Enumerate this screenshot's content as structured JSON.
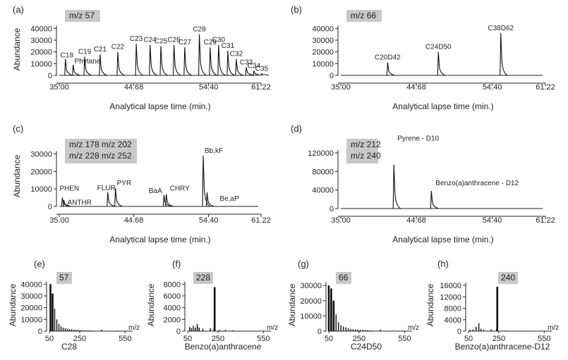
{
  "chart_data": [
    {
      "panel": "(a)",
      "type": "line",
      "ion_label": [
        "m/z 57"
      ],
      "xlabel": "Analytical lapse time (min.)",
      "ylabel": "Abundance",
      "xlim": [
        35.0,
        61.22
      ],
      "ylim": [
        0,
        45000
      ],
      "xticks": [
        "35.00",
        "44.68",
        "54.40",
        "61.22"
      ],
      "yticks": [
        0,
        10000,
        20000,
        30000,
        40000
      ],
      "peaks": [
        {
          "label": "C18",
          "x": 35.8,
          "y": 14000
        },
        {
          "label": "Phytane",
          "x": 36.8,
          "y": 9000
        },
        {
          "label": "C19",
          "x": 38.3,
          "y": 16000
        },
        {
          "label": "C21",
          "x": 40.3,
          "y": 18000
        },
        {
          "label": "C22",
          "x": 42.6,
          "y": 20000
        },
        {
          "label": "C23",
          "x": 45.0,
          "y": 27000
        },
        {
          "label": "C24",
          "x": 46.8,
          "y": 26000
        },
        {
          "label": "C25",
          "x": 48.2,
          "y": 25000
        },
        {
          "label": "C26",
          "x": 49.9,
          "y": 26000
        },
        {
          "label": "C27",
          "x": 51.3,
          "y": 24000
        },
        {
          "label": "C28",
          "x": 53.2,
          "y": 35000
        },
        {
          "label": "C29",
          "x": 54.6,
          "y": 24000
        },
        {
          "label": "C30",
          "x": 55.7,
          "y": 26000
        },
        {
          "label": "C31",
          "x": 56.9,
          "y": 21000
        },
        {
          "label": "C32",
          "x": 58.0,
          "y": 14000
        },
        {
          "label": "C33",
          "x": 59.3,
          "y": 7000
        },
        {
          "label": "C34",
          "x": 60.3,
          "y": 4000
        },
        {
          "label": "C35",
          "x": 61.3,
          "y": 1500
        }
      ]
    },
    {
      "panel": "(b)",
      "type": "line",
      "ion_label": [
        "m/z 66"
      ],
      "xlabel": "Analytical lapse time (min.)",
      "ylabel": "",
      "xlim": [
        35.0,
        61.22
      ],
      "ylim": [
        0,
        45000
      ],
      "xticks": [
        "35.00",
        "44.68",
        "54.40",
        "61.22"
      ],
      "yticks": [
        0,
        10000,
        20000,
        30000,
        40000
      ],
      "peaks": [
        {
          "label": "C20D42",
          "x": 41.0,
          "y": 11000
        },
        {
          "label": "C24D50",
          "x": 47.5,
          "y": 20000
        },
        {
          "label": "C38D62",
          "x": 55.5,
          "y": 36000
        }
      ]
    },
    {
      "panel": "(c)",
      "type": "line",
      "ion_label": [
        "m/z 178 m/z 202",
        "m/z 228 m/z 252"
      ],
      "xlabel": "Analytical lapse time (min.)",
      "ylabel": "Abundance",
      "xlim": [
        35.0,
        61.22
      ],
      "ylim": [
        0,
        35000
      ],
      "xticks": [
        "35.00",
        "44.68",
        "54.40",
        "61.22"
      ],
      "yticks": [
        0,
        10000,
        20000,
        30000
      ],
      "peaks": [
        {
          "label": "PHEN",
          "x": 35.4,
          "y": 5000
        },
        {
          "label": "ANTHR",
          "x": 35.6,
          "y": 3500
        },
        {
          "label": "FLUR",
          "x": 41.3,
          "y": 8000
        },
        {
          "label": "PYR",
          "x": 42.3,
          "y": 10500
        },
        {
          "label": "BaA",
          "x": 48.6,
          "y": 6500
        },
        {
          "label": "CHRY",
          "x": 48.9,
          "y": 7000
        },
        {
          "label": "Bb,kF",
          "x": 53.7,
          "y": 29000
        },
        {
          "label": "Be,aP",
          "x": 54.2,
          "y": 8000
        }
      ]
    },
    {
      "panel": "(d)",
      "type": "line",
      "ion_label": [
        "m/z 212",
        "m/z 240"
      ],
      "xlabel": "Analytical lapse time (min.)",
      "ylabel": "",
      "xlim": [
        35.0,
        61.22
      ],
      "ylim": [
        0,
        120000
      ],
      "xticks": [
        "35.00",
        "44.68",
        "54.40",
        "61.22"
      ],
      "yticks": [
        0,
        40000,
        80000,
        120000
      ],
      "peaks": [
        {
          "label": "Pyrene - D10",
          "x": 41.8,
          "y": 95000
        },
        {
          "label": "Benzo(a)anthracene - D12",
          "x": 46.6,
          "y": 38000
        }
      ]
    },
    {
      "panel": "(e)",
      "type": "bar",
      "mz_label": "57",
      "compound": "C28",
      "xlabel": "m/z",
      "ylabel": "Abundance",
      "xlim": [
        50,
        600
      ],
      "ylim": [
        0,
        42000
      ],
      "xticks": [
        50,
        250,
        550
      ],
      "yticks": [
        0,
        10000,
        20000,
        30000,
        40000
      ],
      "mz": [
        57,
        71,
        85,
        99,
        113,
        127,
        141,
        155,
        169,
        183,
        197,
        211,
        225,
        239,
        253,
        267,
        281,
        295,
        309,
        323,
        337,
        351,
        365,
        379,
        394
      ],
      "intensity": [
        40000,
        32000,
        19000,
        10000,
        6000,
        4000,
        3000,
        2500,
        2000,
        1800,
        1500,
        1300,
        1100,
        1000,
        900,
        800,
        700,
        600,
        500,
        450,
        400,
        350,
        300,
        250,
        1200
      ]
    },
    {
      "panel": "(f)",
      "type": "bar",
      "mz_label": "228",
      "compound": "Benzo(a)anthracene",
      "xlabel": "m/z",
      "ylabel": "Abundance",
      "xlim": [
        50,
        600
      ],
      "ylim": [
        0,
        8400
      ],
      "xticks": [
        50,
        250,
        550
      ],
      "yticks": [
        0,
        2000,
        4000,
        6000,
        8000
      ],
      "mz": [
        63,
        75,
        87,
        100,
        113,
        114,
        126,
        150,
        200,
        224,
        226,
        228,
        229,
        260,
        300,
        350
      ],
      "intensity": [
        700,
        500,
        900,
        600,
        1200,
        1000,
        600,
        400,
        500,
        600,
        1200,
        7500,
        1500,
        200,
        200,
        150
      ]
    },
    {
      "panel": "(g)",
      "type": "bar",
      "mz_label": "66",
      "compound": "C24D50",
      "xlabel": "m/z",
      "ylabel": "Abundance",
      "xlim": [
        50,
        600
      ],
      "ylim": [
        0,
        31000
      ],
      "xticks": [
        50,
        250,
        550
      ],
      "yticks": [
        0,
        10000,
        20000,
        30000
      ],
      "mz": [
        50,
        66,
        82,
        98,
        114,
        130,
        146,
        162,
        178,
        194,
        210,
        226,
        242,
        258,
        274,
        290,
        306,
        322,
        338,
        390
      ],
      "intensity": [
        30000,
        28000,
        20000,
        11000,
        6000,
        4000,
        3000,
        2500,
        2000,
        1500,
        1300,
        1100,
        1000,
        900,
        800,
        700,
        600,
        500,
        400,
        1000
      ]
    },
    {
      "panel": "(h)",
      "type": "bar",
      "mz_label": "240",
      "compound": "Benzo(a)anthracene-D12",
      "xlabel": "m/z",
      "ylabel": "Abundance",
      "xlim": [
        50,
        600
      ],
      "ylim": [
        0,
        16500
      ],
      "xticks": [
        50,
        250,
        550
      ],
      "yticks": [
        0,
        4000,
        8000,
        12000,
        16000
      ],
      "mz": [
        60,
        80,
        100,
        118,
        132,
        150,
        200,
        236,
        240,
        241,
        300,
        400
      ],
      "intensity": [
        500,
        600,
        1500,
        2800,
        800,
        500,
        600,
        1000,
        15500,
        2000,
        200,
        150
      ]
    }
  ]
}
